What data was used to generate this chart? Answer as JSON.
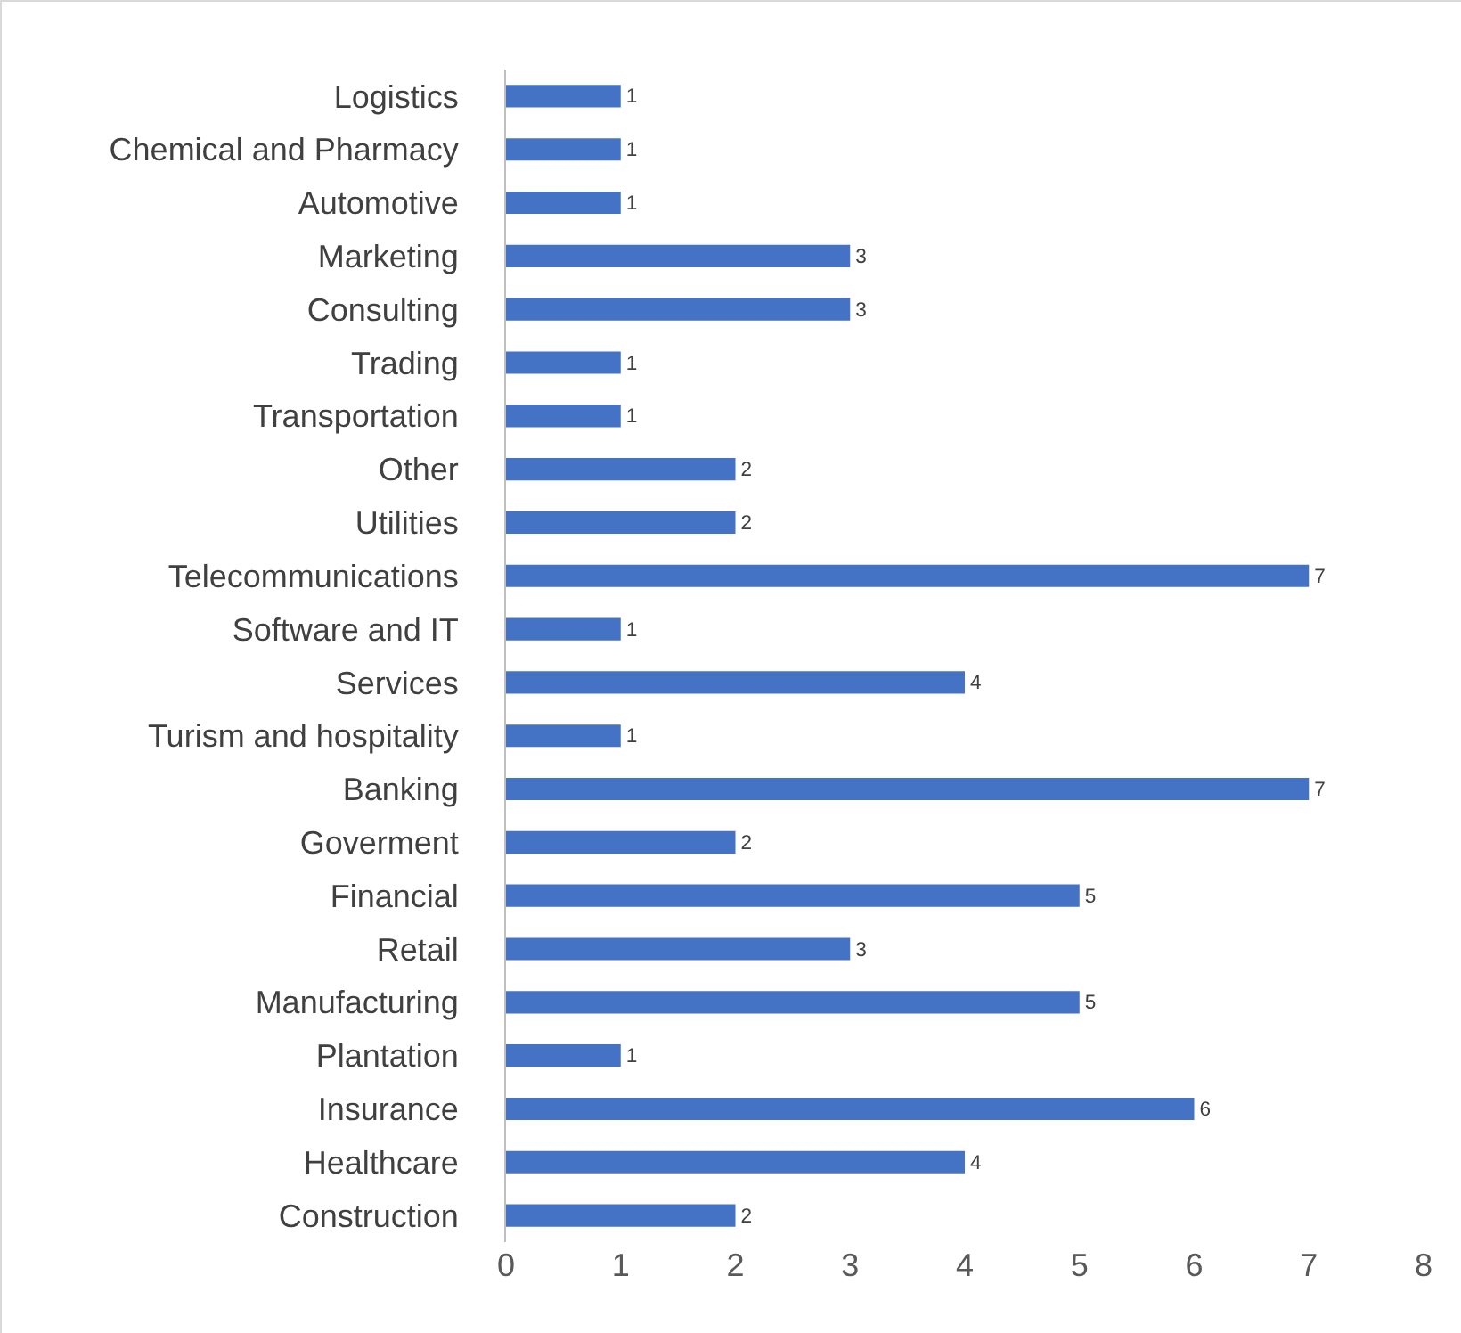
{
  "chart_data": {
    "type": "bar",
    "orientation": "horizontal",
    "categories": [
      "Logistics",
      "Chemical and Pharmacy",
      "Automotive",
      "Marketing",
      "Consulting",
      "Trading",
      "Transportation",
      "Other",
      "Utilities",
      "Telecommunications",
      "Software and IT",
      "Services",
      "Turism and hospitality",
      "Banking",
      "Goverment",
      "Financial",
      "Retail",
      "Manufacturing",
      "Plantation",
      "Insurance",
      "Healthcare",
      "Construction"
    ],
    "values": [
      1,
      1,
      1,
      3,
      3,
      1,
      1,
      2,
      2,
      7,
      1,
      4,
      1,
      7,
      2,
      5,
      3,
      5,
      1,
      6,
      4,
      2
    ],
    "color": "#4472c4",
    "xlim": [
      0,
      8
    ],
    "xticks": [
      0,
      1,
      2,
      3,
      4,
      5,
      6,
      7,
      8
    ],
    "grid": false,
    "legend": false,
    "data_labels": true
  }
}
